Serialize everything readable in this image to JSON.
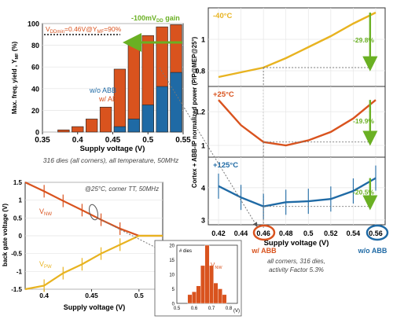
{
  "colors": {
    "orange": "#d9531e",
    "blue": "#1f6aa5",
    "yellow": "#e8b320",
    "green": "#6ab023",
    "grey": "#8a8a8a"
  },
  "chart_data": [
    {
      "id": "yield",
      "type": "bar",
      "x": [
        0.36,
        0.38,
        0.4,
        0.42,
        0.44,
        0.46,
        0.48,
        0.5,
        0.52,
        0.54
      ],
      "series": [
        {
          "name": "w/ ABB",
          "values": [
            0,
            2,
            5,
            12,
            23,
            58,
            80,
            89,
            97,
            99
          ]
        },
        {
          "name": "w/o ABB",
          "values": [
            0,
            0,
            0,
            0,
            0,
            5,
            12,
            25,
            42,
            55
          ]
        }
      ],
      "xlim": [
        0.35,
        0.55
      ],
      "ylim": [
        0,
        100
      ],
      "xticks": [
        "0.35",
        "0.4",
        "0.45",
        "0.5",
        "0.55"
      ],
      "yticks": [
        "0",
        "20",
        "40",
        "60",
        "80",
        "100"
      ],
      "xlabel": "Supply voltage (V)",
      "ylabel": "Max. freq. yield , Y",
      "ylabel_sub": "MF",
      "ylabel_tail": " (%)",
      "annotation_prefix": "V",
      "annotation_sub1": "DDmin",
      "annotation_mid": "=0.46V@Y",
      "annotation_sub2": "MF",
      "annotation_tail": "=90%",
      "gain_prefix": "-100mV",
      "gain_sub": "DD",
      "gain_tail": " gain",
      "caption": "316 dies (all corners), all temperature, 50MHz"
    },
    {
      "id": "back-gate",
      "type": "line",
      "x": [
        0.375,
        0.4,
        0.42,
        0.44,
        0.46,
        0.48,
        0.5,
        0.525
      ],
      "series": [
        {
          "name": "V",
          "sub": "NW",
          "values": [
            1.5,
            1.25,
            0.98,
            0.72,
            0.45,
            0.2,
            0.0,
            0.0
          ]
        },
        {
          "name": "V",
          "sub": "PW",
          "values": [
            -1.5,
            -1.4,
            -1.05,
            -0.8,
            -0.5,
            -0.25,
            0.0,
            0.0
          ]
        }
      ],
      "xlim": [
        0.38,
        0.525
      ],
      "ylim": [
        -1.5,
        1.5
      ],
      "xticks": [
        "0.4",
        "0.45",
        "0.5"
      ],
      "yticks": [
        "1.5",
        "1",
        "0.5",
        "0",
        "-0.5",
        "-1",
        "-1.5"
      ],
      "xlabel": "Supply voltage (V)",
      "ylabel": "back gate voltage (V)",
      "caption": "@25°C, corner TT, 50MHz"
    },
    {
      "id": "histogram",
      "type": "bar",
      "x": [
        0.575,
        0.6,
        0.625,
        0.65,
        0.675,
        0.7,
        0.725,
        0.75,
        0.775
      ],
      "values": [
        3,
        4,
        6,
        13,
        20,
        13,
        7,
        5,
        3
      ],
      "xlim": [
        0.5,
        0.85
      ],
      "ylim": [
        0,
        20
      ],
      "xticks": [
        "0.5",
        "0.6",
        "0.7",
        "0.8"
      ],
      "yticks": [
        "0",
        "5",
        "10",
        "15",
        "20"
      ],
      "ylabel": "# dies",
      "series_label": "V",
      "series_label_sub": "NW",
      "xunit": "(V)"
    },
    {
      "id": "power",
      "type": "line",
      "x": [
        0.42,
        0.44,
        0.46,
        0.48,
        0.5,
        0.52,
        0.54,
        0.56
      ],
      "panels": [
        {
          "temp": "-40°C",
          "values": [
            0.76,
            0.79,
            0.82,
            0.88,
            0.95,
            1.02,
            1.1,
            1.17
          ],
          "ylim": [
            0.7,
            1.2
          ],
          "yticks": [
            "0.8",
            "1"
          ],
          "change": "-29.8%"
        },
        {
          "temp": "+25°C",
          "values": [
            1.27,
            1.12,
            1.02,
            1.0,
            1.03,
            1.08,
            1.16,
            1.27
          ],
          "ylim": [
            0.93,
            1.35
          ],
          "yticks": [
            "1",
            "1.2"
          ],
          "change": "-19.9%"
        },
        {
          "temp": "+125°C",
          "values": [
            4.05,
            3.7,
            3.42,
            3.55,
            3.58,
            3.65,
            3.9,
            4.3
          ],
          "ylim": [
            2.85,
            4.95
          ],
          "yticks": [
            "3",
            "4"
          ],
          "change": "-20.5%"
        }
      ],
      "xticks": [
        "0.42",
        "0.44",
        "0.46",
        "0.48",
        "0.5",
        "0.52",
        "0.54",
        "0.56"
      ],
      "xlabel": "Supply voltage (V)",
      "ylabel": "Cortex + ABB-IP normalized power (P/P@MEP@25°)",
      "marker_left": "w/ ABB",
      "marker_right": "w/o ABB",
      "caption_line1": "all corners, 316 dies,",
      "caption_line2": "activity Factor 5.3%"
    }
  ]
}
